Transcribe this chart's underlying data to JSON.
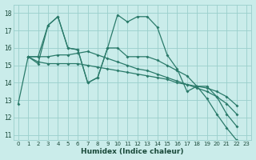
{
  "xlabel": "Humidex (Indice chaleur)",
  "ylabel": "",
  "xlim": [
    -0.5,
    23.5
  ],
  "ylim": [
    10.7,
    18.5
  ],
  "yticks": [
    11,
    12,
    13,
    14,
    15,
    16,
    17,
    18
  ],
  "xticks": [
    0,
    1,
    2,
    3,
    4,
    5,
    6,
    7,
    8,
    9,
    10,
    11,
    12,
    13,
    14,
    15,
    16,
    17,
    18,
    19,
    20,
    21,
    22,
    23
  ],
  "bg_color": "#caecea",
  "grid_color": "#9acfcc",
  "line_color": "#2a7a6a",
  "series": [
    {
      "x": [
        0,
        1,
        2,
        3,
        4,
        5,
        6,
        7,
        8,
        9,
        10,
        11,
        12,
        13,
        14,
        15,
        16,
        17,
        18,
        19,
        20,
        21,
        22
      ],
      "y": [
        12.8,
        15.5,
        15.1,
        17.3,
        17.8,
        16.0,
        15.9,
        14.0,
        14.3,
        16.0,
        17.9,
        17.5,
        17.8,
        17.8,
        17.2,
        15.6,
        14.8,
        13.5,
        13.8,
        13.1,
        12.2,
        11.4,
        10.7
      ]
    },
    {
      "x": [
        1,
        2,
        3,
        4,
        5,
        6,
        7,
        8,
        9,
        10,
        11,
        12,
        13,
        14,
        15,
        16,
        17,
        18,
        19,
        20,
        21,
        22
      ],
      "y": [
        15.5,
        15.5,
        15.5,
        15.6,
        15.6,
        15.7,
        15.8,
        15.6,
        15.4,
        15.2,
        15.0,
        14.8,
        14.7,
        14.5,
        14.3,
        14.1,
        13.9,
        13.7,
        13.5,
        13.2,
        12.8,
        12.2
      ]
    },
    {
      "x": [
        1,
        2,
        3,
        4,
        5,
        6,
        7,
        8,
        9,
        10,
        11,
        12,
        13,
        14,
        15,
        16,
        17,
        18,
        19,
        20,
        21,
        22
      ],
      "y": [
        15.5,
        15.2,
        15.1,
        15.1,
        15.1,
        15.1,
        15.0,
        14.9,
        14.8,
        14.7,
        14.6,
        14.5,
        14.4,
        14.3,
        14.2,
        14.0,
        13.9,
        13.8,
        13.7,
        13.5,
        13.2,
        12.7
      ]
    },
    {
      "x": [
        1,
        2,
        3,
        4,
        5,
        6,
        7,
        8,
        9,
        10,
        11,
        12,
        13,
        14,
        15,
        16,
        17,
        18,
        19,
        20,
        21,
        22
      ],
      "y": [
        15.5,
        15.5,
        17.3,
        17.8,
        16.0,
        15.9,
        14.0,
        14.3,
        16.0,
        16.0,
        15.5,
        15.5,
        15.5,
        15.3,
        15.0,
        14.7,
        14.4,
        13.8,
        13.8,
        13.2,
        12.2,
        11.5
      ]
    }
  ]
}
